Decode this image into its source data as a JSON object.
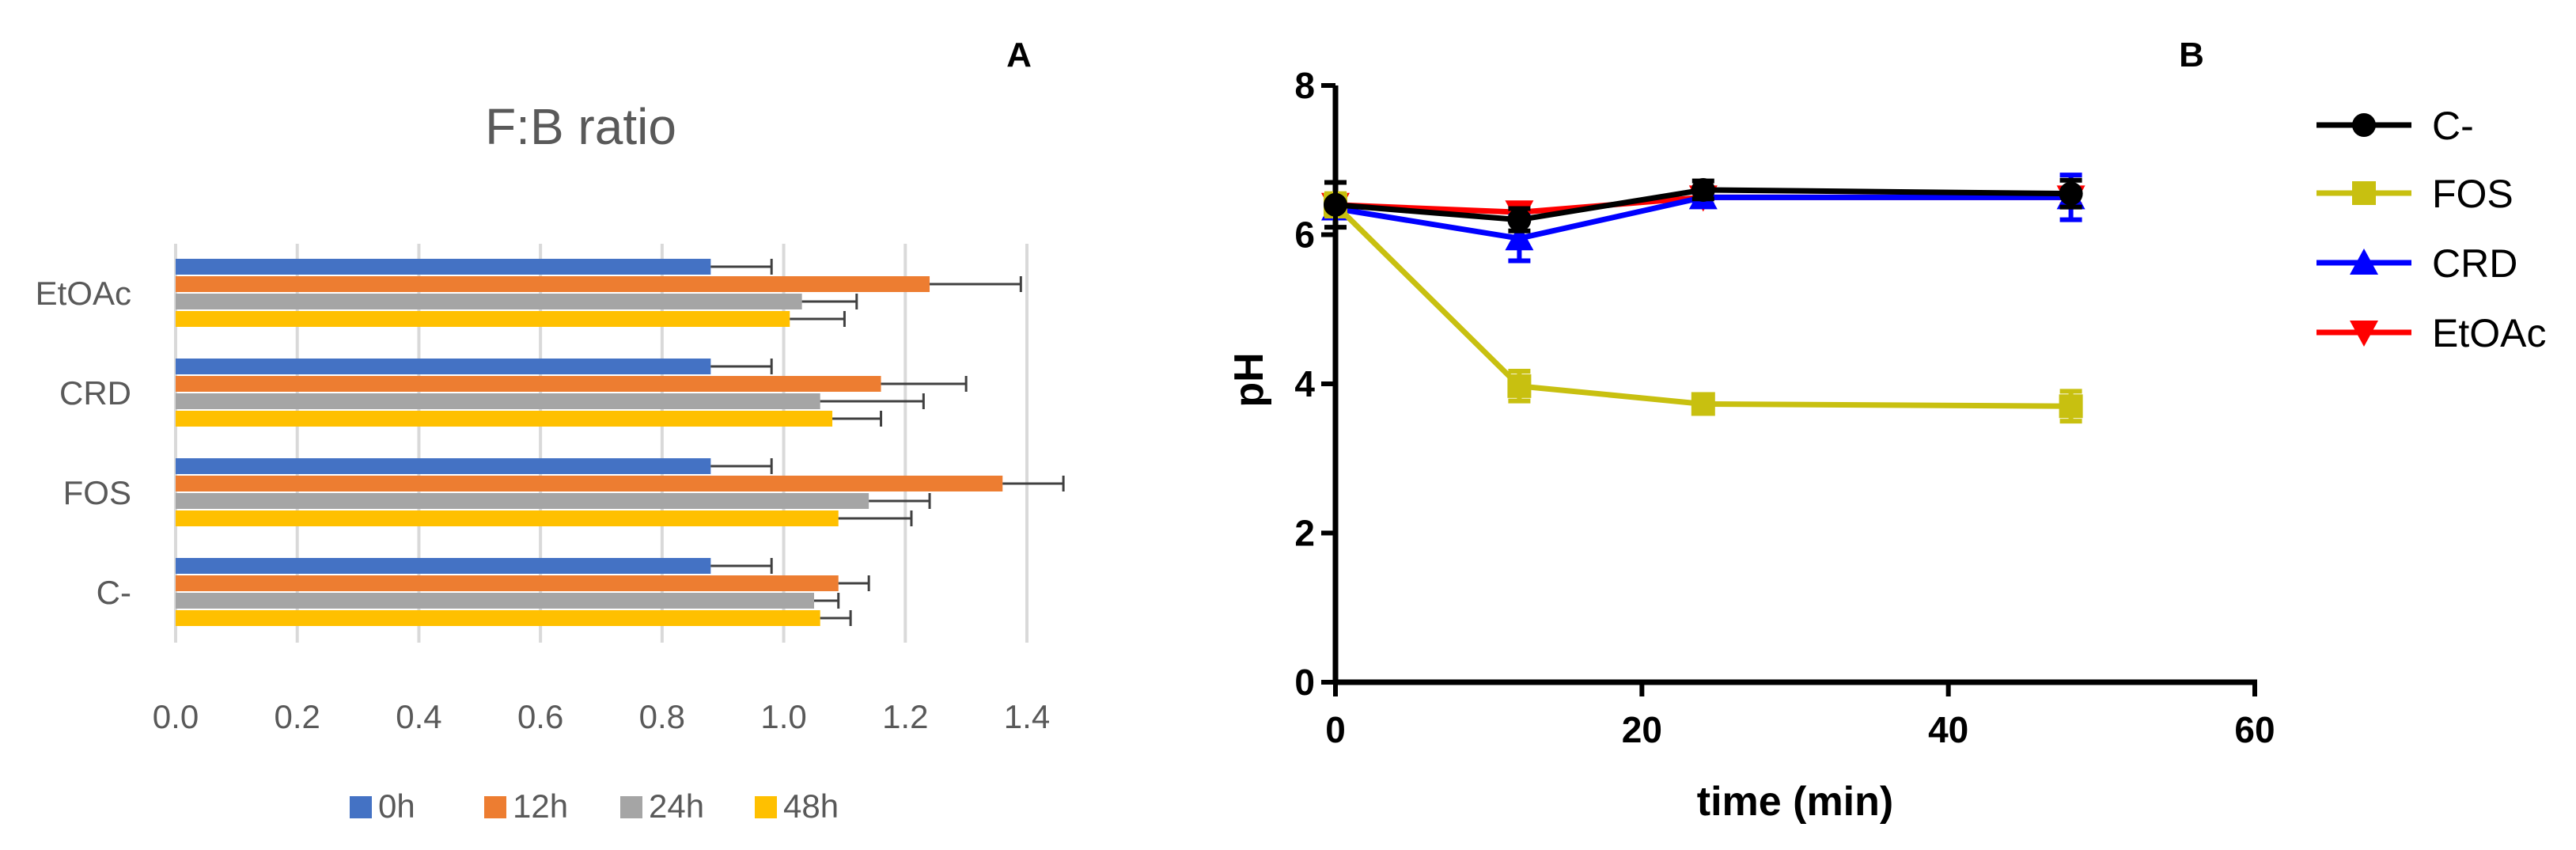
{
  "chart_data": [
    {
      "panel_label": "A",
      "type": "bar",
      "orientation": "horizontal",
      "title": "F:B ratio",
      "categories": [
        "EtOAc",
        "CRD",
        "FOS",
        "C-"
      ],
      "series": [
        {
          "name": "0h",
          "color": "#4472C4",
          "values": [
            0.88,
            0.88,
            0.88,
            0.88
          ],
          "errors": [
            0.1,
            0.1,
            0.1,
            0.1
          ]
        },
        {
          "name": "12h",
          "color": "#ED7D31",
          "values": [
            1.24,
            1.16,
            1.36,
            1.09
          ],
          "errors": [
            0.15,
            0.14,
            0.1,
            0.05
          ]
        },
        {
          "name": "24h",
          "color": "#A5A5A5",
          "values": [
            1.03,
            1.06,
            1.14,
            1.05
          ],
          "errors": [
            0.09,
            0.17,
            0.1,
            0.04
          ]
        },
        {
          "name": "48h",
          "color": "#FFC000",
          "values": [
            1.01,
            1.08,
            1.09,
            1.06
          ],
          "errors": [
            0.09,
            0.08,
            0.12,
            0.05
          ]
        }
      ],
      "xlim": [
        0.0,
        1.4
      ],
      "xticks": [
        "0.0",
        "0.2",
        "0.4",
        "0.6",
        "0.8",
        "1.0",
        "1.2",
        "1.4"
      ],
      "xlabel": "",
      "ylabel": "",
      "grid": "vertical",
      "legend_position": "bottom"
    },
    {
      "panel_label": "B",
      "type": "line",
      "x": [
        0,
        12,
        24,
        48
      ],
      "series": [
        {
          "name": "C-",
          "color": "#000000",
          "marker": "circle",
          "values": [
            6.4,
            6.2,
            6.6,
            6.55
          ],
          "errors": [
            0.3,
            0.15,
            0.12,
            0.18
          ]
        },
        {
          "name": "FOS",
          "color": "#C8C010",
          "marker": "square",
          "values": [
            6.4,
            3.97,
            3.73,
            3.7
          ],
          "errors": [
            0.15,
            0.2,
            0.1,
            0.2
          ]
        },
        {
          "name": "CRD",
          "color": "#0000FF",
          "marker": "triangle-up",
          "values": [
            6.35,
            5.95,
            6.5,
            6.5
          ],
          "errors": [
            0.12,
            0.3,
            0.1,
            0.3
          ]
        },
        {
          "name": "EtOAc",
          "color": "#FF0000",
          "marker": "triangle-down",
          "values": [
            6.4,
            6.3,
            6.5,
            6.5
          ],
          "errors": [
            0.1,
            0.1,
            0.12,
            0.1
          ]
        }
      ],
      "xlabel": "time (min)",
      "ylabel": "pH",
      "xlim": [
        0,
        60
      ],
      "ylim": [
        0,
        8
      ],
      "xticks": [
        "0",
        "20",
        "40",
        "60"
      ],
      "yticks": [
        "0",
        "2",
        "4",
        "6",
        "8"
      ],
      "grid": false,
      "legend_position": "right"
    }
  ]
}
